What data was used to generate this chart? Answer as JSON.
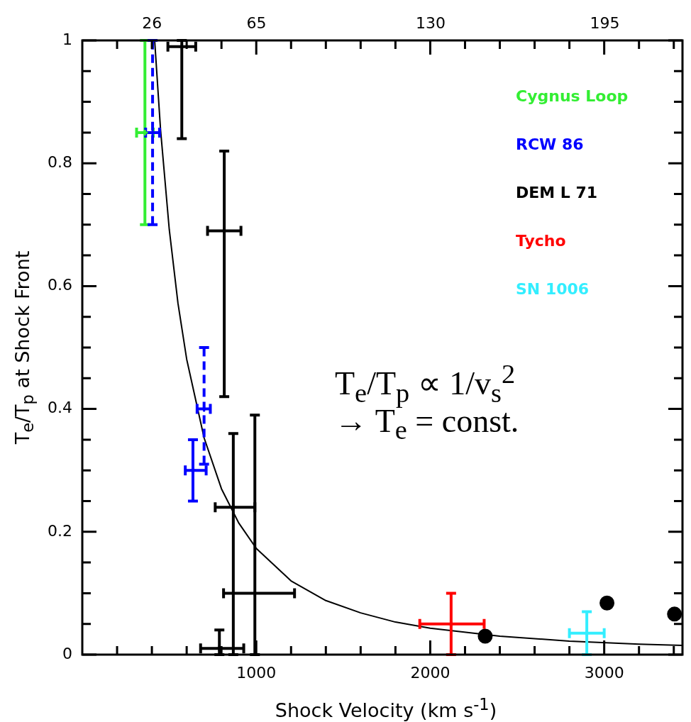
{
  "chart_data": {
    "type": "scatter",
    "xlabel": "Shock Velocity (km s$^{-1}$)",
    "ylabel": "T$_{e}$/T$_{p}$ at Shock Front",
    "xlim": [
      0,
      3450
    ],
    "ylim": [
      0,
      1
    ],
    "xticks": [
      {
        "value": 200,
        "label": null
      },
      {
        "value": 400,
        "label": null
      },
      {
        "value": 600,
        "label": null
      },
      {
        "value": 800,
        "label": null
      },
      1000,
      {
        "value": 1200,
        "label": null
      },
      {
        "value": 1400,
        "label": null
      },
      {
        "value": 1600,
        "label": null
      },
      {
        "value": 1800,
        "label": null
      },
      2000,
      {
        "value": 2200,
        "label": null
      },
      {
        "value": 2400,
        "label": null
      },
      {
        "value": 2600,
        "label": null
      },
      {
        "value": 2800,
        "label": null
      },
      3000,
      {
        "value": 3200,
        "label": null
      },
      {
        "value": 3400,
        "label": null
      }
    ],
    "yticks": [
      0,
      {
        "value": 0.05,
        "label": null
      },
      {
        "value": 0.1,
        "label": null
      },
      {
        "value": 0.15,
        "label": null
      },
      0.2,
      {
        "value": 0.25,
        "label": null
      },
      {
        "value": 0.3,
        "label": null
      },
      {
        "value": 0.35,
        "label": null
      },
      0.4,
      {
        "value": 0.45,
        "label": null
      },
      {
        "value": 0.5,
        "label": null
      },
      {
        "value": 0.55,
        "label": null
      },
      0.6,
      {
        "value": 0.65,
        "label": null
      },
      {
        "value": 0.7,
        "label": null
      },
      {
        "value": 0.75,
        "label": null
      },
      0.8,
      {
        "value": 0.85,
        "label": null
      },
      {
        "value": 0.9,
        "label": null
      },
      {
        "value": 0.95,
        "label": null
      },
      1
    ],
    "x2lim": [
      0,
      224
    ],
    "x2ticks": [
      26,
      65,
      130,
      195
    ],
    "grid": false,
    "legend": "top right",
    "annotations": [
      "T$_{e}$/T$_{p}$ ∝ 1/v$_{s}$$^{2}$",
      "→ T$_{e}$ = const."
    ],
    "series": [
      {
        "name": "Cygnus Loop",
        "color": "#33ee33",
        "marker": "cross",
        "x": [
          360
        ],
        "values": [
          0.85
        ],
        "errors": [
          [
            0.7,
            1.0
          ]
        ],
        "xerrors": [
          [
            312,
            408
          ]
        ]
      },
      {
        "name": "RCW 86",
        "color": "#0000ff",
        "marker": "cross",
        "line_style": "dashed",
        "x": [
          404,
          700
        ],
        "values": [
          0.85,
          0.4
        ],
        "errors": [
          [
            0.7,
            1.0
          ],
          [
            0.31,
            0.5
          ]
        ],
        "xerrors": [
          [
            364,
            444
          ],
          [
            660,
            736
          ]
        ]
      },
      {
        "color": "#0000ff",
        "marker": "cross",
        "x": [
          636
        ],
        "values": [
          0.3
        ],
        "errors": [
          [
            0.25,
            0.35
          ]
        ],
        "xerrors": [
          [
            592,
            712
          ]
        ]
      },
      {
        "name": "DEM L 71",
        "color": "#000000",
        "marker": "cross",
        "x": [
          572,
          816,
          868,
          992,
          788
        ],
        "values": [
          0.99,
          0.69,
          0.24,
          0.1,
          0.01
        ],
        "errors": [
          [
            0.84,
            1.0
          ],
          [
            0.42,
            0.82
          ],
          [
            0,
            0.36
          ],
          [
            0,
            0.39
          ],
          [
            0,
            0.04
          ]
        ],
        "xerrors": [
          [
            492,
            652
          ],
          [
            720,
            912
          ],
          [
            764,
            992
          ],
          [
            812,
            1220
          ],
          [
            680,
            928
          ]
        ]
      },
      {
        "name": "Tycho",
        "color": "#ff0000",
        "marker": "cross",
        "x": [
          2120
        ],
        "values": [
          0.05
        ],
        "errors": [
          [
            0,
            0.1
          ]
        ],
        "xerrors": [
          [
            1940,
            2310
          ]
        ]
      },
      {
        "name": "SN 1006",
        "color": "#33eeff",
        "marker": "cross",
        "x": [
          2900
        ],
        "values": [
          0.035
        ],
        "errors": [
          [
            0,
            0.07
          ]
        ],
        "xerrors": [
          [
            2800,
            3000
          ]
        ]
      },
      {
        "color": "#000000",
        "marker": "circle",
        "x": [
          2316,
          3016,
          3404
        ],
        "values": [
          0.03,
          0.084,
          0.066
        ]
      },
      {
        "type": "line",
        "color": "#000000",
        "line_style": "solid",
        "marker": "none",
        "x": [
          416,
          450,
          500,
          550,
          600,
          700,
          800,
          900,
          1000,
          1200,
          1400,
          1600,
          1800,
          2000,
          2400,
          2800,
          3200,
          3450
        ],
        "values": [
          1.0,
          0.854,
          0.692,
          0.572,
          0.481,
          0.353,
          0.27,
          0.214,
          0.173,
          0.12,
          0.088,
          0.068,
          0.053,
          0.043,
          0.03,
          0.022,
          0.017,
          0.015
        ]
      }
    ]
  }
}
